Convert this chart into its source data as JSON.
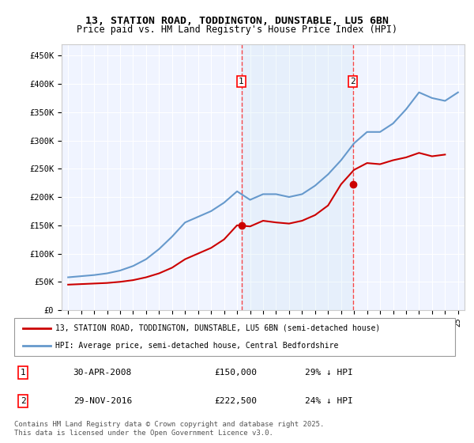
{
  "title1": "13, STATION ROAD, TODDINGTON, DUNSTABLE, LU5 6BN",
  "title2": "Price paid vs. HM Land Registry's House Price Index (HPI)",
  "legend_line1": "13, STATION ROAD, TODDINGTON, DUNSTABLE, LU5 6BN (semi-detached house)",
  "legend_line2": "HPI: Average price, semi-detached house, Central Bedfordshire",
  "annotation1_label": "1",
  "annotation1_date": "30-APR-2008",
  "annotation1_price": "£150,000",
  "annotation1_hpi": "29% ↓ HPI",
  "annotation2_label": "2",
  "annotation2_date": "29-NOV-2016",
  "annotation2_price": "£222,500",
  "annotation2_hpi": "24% ↓ HPI",
  "footer": "Contains HM Land Registry data © Crown copyright and database right 2025.\nThis data is licensed under the Open Government Licence v3.0.",
  "red_color": "#cc0000",
  "blue_color": "#6699cc",
  "background_color": "#f0f4ff",
  "ylim": [
    0,
    470000
  ],
  "yticks": [
    0,
    50000,
    100000,
    150000,
    200000,
    250000,
    300000,
    350000,
    400000,
    450000
  ],
  "ytick_labels": [
    "£0",
    "£50K",
    "£100K",
    "£150K",
    "£200K",
    "£250K",
    "£300K",
    "£350K",
    "£400K",
    "£450K"
  ],
  "hpi_years": [
    1995,
    1996,
    1997,
    1998,
    1999,
    2000,
    2001,
    2002,
    2003,
    2004,
    2005,
    2006,
    2007,
    2008,
    2009,
    2010,
    2011,
    2012,
    2013,
    2014,
    2015,
    2016,
    2017,
    2018,
    2019,
    2020,
    2021,
    2022,
    2023,
    2024,
    2025
  ],
  "hpi_values": [
    58000,
    60000,
    62000,
    65000,
    70000,
    78000,
    90000,
    108000,
    130000,
    155000,
    165000,
    175000,
    190000,
    210000,
    195000,
    205000,
    205000,
    200000,
    205000,
    220000,
    240000,
    265000,
    295000,
    315000,
    315000,
    330000,
    355000,
    385000,
    375000,
    370000,
    385000
  ],
  "paid_years": [
    1995,
    1996,
    1997,
    1998,
    1999,
    2000,
    2001,
    2002,
    2003,
    2004,
    2005,
    2006,
    2007,
    2008,
    2009,
    2010,
    2011,
    2012,
    2013,
    2014,
    2015,
    2016,
    2017,
    2018,
    2019,
    2020,
    2021,
    2022,
    2023,
    2024
  ],
  "paid_values": [
    45000,
    46000,
    47000,
    48000,
    50000,
    53000,
    58000,
    65000,
    75000,
    90000,
    100000,
    110000,
    125000,
    150000,
    148000,
    158000,
    155000,
    153000,
    158000,
    168000,
    185000,
    222500,
    248000,
    260000,
    258000,
    265000,
    270000,
    278000,
    272000,
    275000
  ],
  "marker1_x": 2008.33,
  "marker1_y": 150000,
  "marker2_x": 2016.92,
  "marker2_y": 222500,
  "vline1_x": 2008.33,
  "vline2_x": 2016.92,
  "xlim": [
    1994.5,
    2025.5
  ],
  "xticks": [
    1995,
    1996,
    1997,
    1998,
    1999,
    2000,
    2001,
    2002,
    2003,
    2004,
    2005,
    2006,
    2007,
    2008,
    2009,
    2010,
    2011,
    2012,
    2013,
    2014,
    2015,
    2016,
    2017,
    2018,
    2019,
    2020,
    2021,
    2022,
    2023,
    2024,
    2025
  ]
}
